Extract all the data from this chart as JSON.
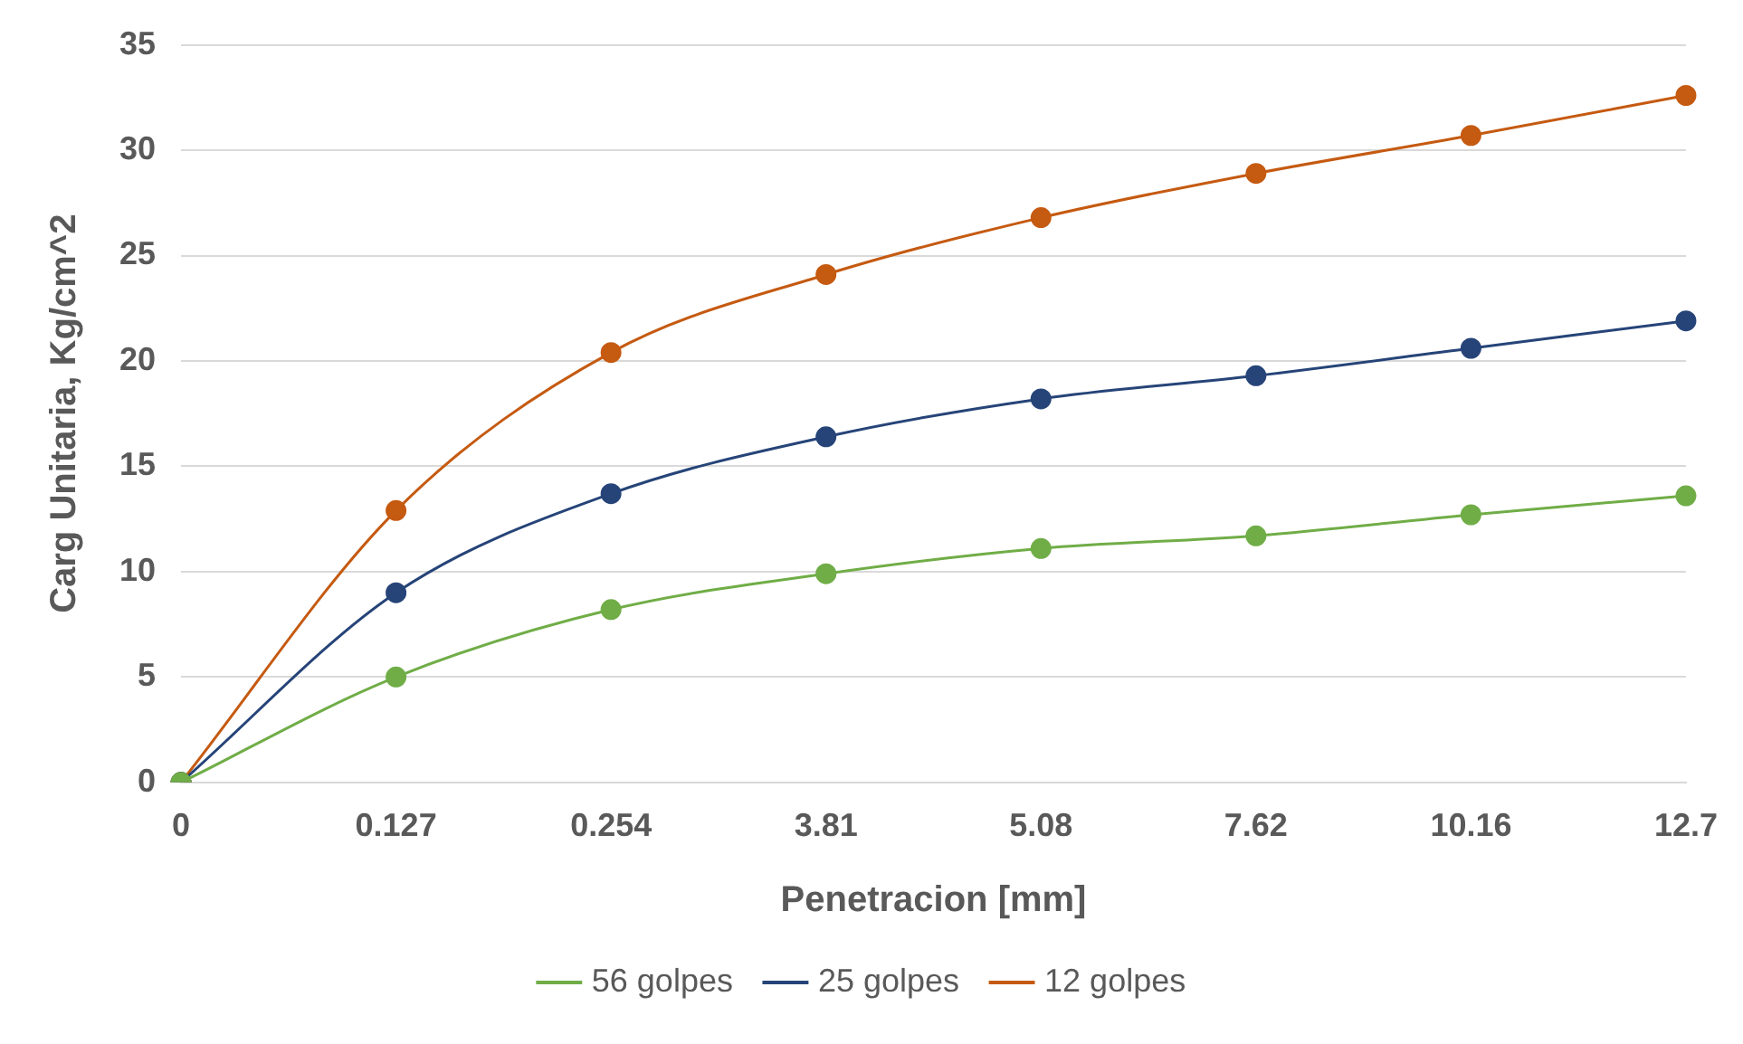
{
  "chart_data": {
    "type": "line",
    "xlabel": "Penetracion [mm]",
    "ylabel": "Carg Unitaria, Kg/cm^2",
    "categories": [
      "0",
      "0.127",
      "0.254",
      "3.81",
      "5.08",
      "7.62",
      "10.16",
      "12.7"
    ],
    "series": [
      {
        "name": "56 golpes",
        "color": "#70ad47",
        "values": [
          0,
          5.0,
          8.2,
          9.9,
          11.1,
          11.7,
          12.7,
          13.6
        ]
      },
      {
        "name": "25 golpes",
        "color": "#264478",
        "values": [
          0,
          9.0,
          13.7,
          16.4,
          18.2,
          19.3,
          20.6,
          21.9
        ]
      },
      {
        "name": "12 golpes",
        "color": "#c55a11",
        "values": [
          0,
          12.9,
          20.4,
          24.1,
          26.8,
          28.9,
          30.7,
          32.6
        ]
      }
    ],
    "ylim": [
      0,
      35
    ],
    "yticks": [
      0,
      5,
      10,
      15,
      20,
      25,
      30,
      35
    ],
    "grid": "y",
    "legend": "bottom",
    "marker": "circle",
    "line_style": "solid"
  }
}
